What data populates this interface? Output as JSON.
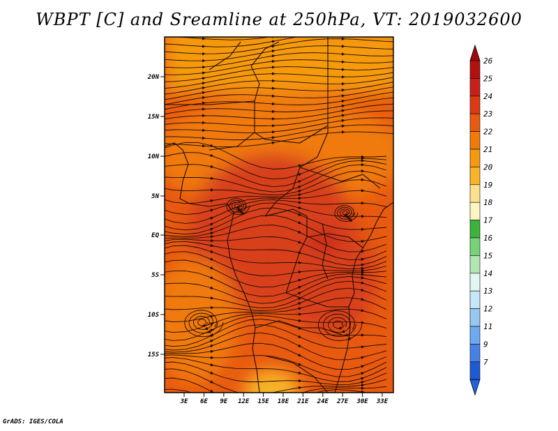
{
  "title": "WBPT [C] and Sreamline at 250hPa, VT: 2019032600",
  "credit": "GrADS: IGES/COLA",
  "map": {
    "lat_labels": [
      "20N",
      "15N",
      "10N",
      "5N",
      "EQ",
      "5S",
      "10S",
      "15S"
    ],
    "lon_labels": [
      "3E",
      "6E",
      "9E",
      "12E",
      "15E",
      "18E",
      "21E",
      "24E",
      "27E",
      "30E",
      "33E"
    ],
    "fill_colors": {
      "c20": "#f8b428",
      "c21": "#f59a10",
      "c22": "#f07a0a",
      "c23": "#e85a10",
      "c24": "#d8401a",
      "c25": "#c82a1a"
    }
  },
  "colorbar": {
    "labels": [
      "26",
      "25",
      "24",
      "23",
      "22",
      "21",
      "20",
      "19",
      "18",
      "17",
      "16",
      "15",
      "14",
      "13",
      "12",
      "11",
      "9",
      "7"
    ],
    "colors": [
      "#b41010",
      "#c82018",
      "#dc3a14",
      "#e85a10",
      "#f07a0a",
      "#f59a10",
      "#f8b428",
      "#fce08c",
      "#fef6c0",
      "#3cb43c",
      "#78d278",
      "#b4e6b4",
      "#e4f6f0",
      "#c8e6fa",
      "#96c8f0",
      "#6eaaf0",
      "#4682e6",
      "#1e5ad2"
    ],
    "top_arrow_color": "#a00a0a",
    "bottom_arrow_color": "#1e64dc"
  }
}
